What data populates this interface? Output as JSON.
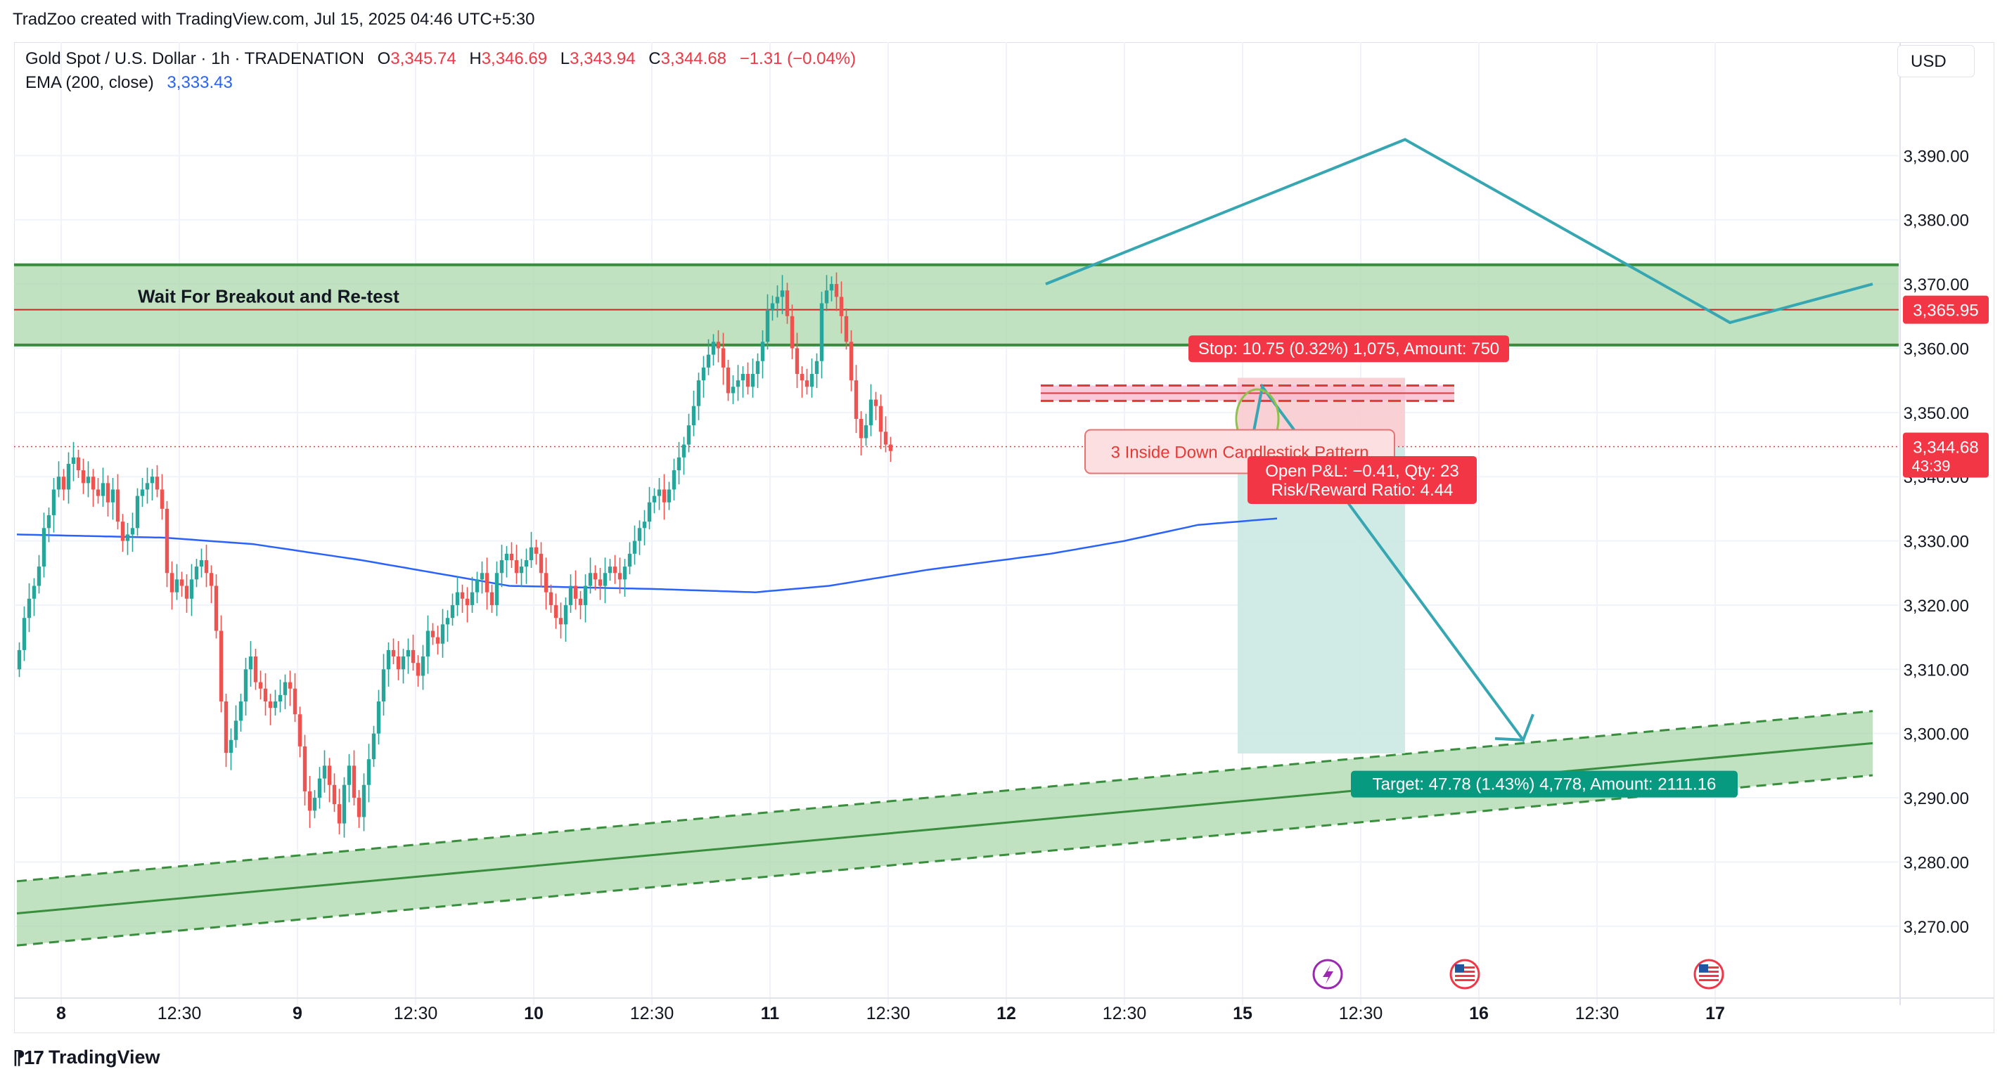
{
  "header": {
    "attribution": "TradZoo created with TradingView.com, Jul 15, 2025 04:46 UTC+5:30"
  },
  "legend": {
    "symbol": "Gold Spot / U.S. Dollar · 1h · TRADENATION",
    "open_label": "O",
    "open": "3,345.74",
    "high_label": "H",
    "high": "3,346.69",
    "low_label": "L",
    "low": "3,343.94",
    "close_label": "C",
    "close": "3,344.68",
    "change": "−1.31 (−0.04%)",
    "ema_label": "EMA (200, close)",
    "ema_value": "3,333.43"
  },
  "currency_button": "USD",
  "footer": {
    "brand": "TradingView"
  },
  "colors": {
    "up": "#26a69a",
    "down": "#ef5350",
    "ema": "#2962ff",
    "zone": "#a5d6a7",
    "zone_border": "#388e3c",
    "drawing": "#36a7b2",
    "stop_zone": "#f8c8cc",
    "target_zone": "#c8e8e2",
    "stop_label": "#f23645",
    "target_label": "#089981",
    "price_label": "#f23645"
  },
  "chart_data": {
    "type": "candlestick",
    "symbol": "Gold Spot / U.S. Dollar",
    "timeframe": "1h",
    "ylim": [
      3261,
      3400
    ],
    "y_ticks": [
      "3,270.00",
      "3,280.00",
      "3,290.00",
      "3,300.00",
      "3,310.00",
      "3,320.00",
      "3,330.00",
      "3,340.00",
      "3,350.00",
      "3,360.00",
      "3,370.00",
      "3,380.00",
      "3,390.00"
    ],
    "y_tick_values": [
      3270,
      3280,
      3290,
      3300,
      3310,
      3320,
      3330,
      3340,
      3350,
      3360,
      3370,
      3380,
      3390
    ],
    "x_ticks": [
      {
        "bar": 9,
        "label": "8",
        "bold": true
      },
      {
        "bar": 33,
        "label": "12:30",
        "bold": false
      },
      {
        "bar": 57,
        "label": "9",
        "bold": true
      },
      {
        "bar": 81,
        "label": "12:30",
        "bold": false
      },
      {
        "bar": 105,
        "label": "10",
        "bold": true
      },
      {
        "bar": 129,
        "label": "12:30",
        "bold": false
      },
      {
        "bar": 153,
        "label": "11",
        "bold": true
      },
      {
        "bar": 177,
        "label": "12:30",
        "bold": false
      },
      {
        "bar": 201,
        "label": "12",
        "bold": true
      },
      {
        "bar": 225,
        "label": "12:30",
        "bold": false
      },
      {
        "bar": 249,
        "label": "15",
        "bold": true
      },
      {
        "bar": 273,
        "label": "12:30",
        "bold": false
      },
      {
        "bar": 297,
        "label": "16",
        "bold": true
      },
      {
        "bar": 321,
        "label": "12:30",
        "bold": false
      },
      {
        "bar": 345,
        "label": "17",
        "bold": true
      }
    ],
    "close_series": [
      3313,
      3318,
      3321,
      3323,
      3326,
      3332,
      3334,
      3338,
      3340,
      3338,
      3342,
      3343,
      3341,
      3339,
      3340,
      3338,
      3337,
      3339,
      3336,
      3338,
      3333,
      3330,
      3331,
      3332,
      3337,
      3338,
      3339,
      3340,
      3338,
      3335,
      3325,
      3322,
      3324,
      3323,
      3321,
      3324,
      3326,
      3327,
      3325,
      3323,
      3316,
      3305,
      3297,
      3299,
      3302,
      3305,
      3310,
      3312,
      3308,
      3307,
      3305,
      3304,
      3305,
      3306,
      3308,
      3307,
      3303,
      3298,
      3291,
      3288,
      3290,
      3293,
      3295,
      3292,
      3289,
      3286,
      3292,
      3295,
      3290,
      3287,
      3292,
      3296,
      3300,
      3305,
      3310,
      3313,
      3312,
      3310,
      3312,
      3313,
      3311,
      3309,
      3312,
      3316,
      3315,
      3314,
      3317,
      3318,
      3320,
      3322,
      3321,
      3320,
      3322,
      3324,
      3325,
      3322,
      3320,
      3325,
      3327,
      3328,
      3327,
      3325,
      3326,
      3327,
      3329,
      3328,
      3325,
      3322,
      3320,
      3318,
      3317,
      3320,
      3323,
      3321,
      3320,
      3323,
      3325,
      3324,
      3323,
      3325,
      3326,
      3325,
      3324,
      3326,
      3328,
      3330,
      3332,
      3333,
      3336,
      3337,
      3338,
      3336,
      3338,
      3341,
      3343,
      3345,
      3348,
      3351,
      3355,
      3357,
      3359,
      3361,
      3360,
      3357,
      3353,
      3354,
      3355,
      3356,
      3354,
      3356,
      3358,
      3361,
      3366,
      3367,
      3368,
      3369,
      3365,
      3360,
      3356,
      3355,
      3354,
      3356,
      3358,
      3367,
      3369,
      3370,
      3368,
      3365,
      3361,
      3355,
      3349,
      3346,
      3348,
      3352,
      3351,
      3347,
      3345,
      3344
    ],
    "ema": {
      "name": "EMA (200, close)",
      "value": 3333.43,
      "points": [
        [
          0,
          3331
        ],
        [
          30,
          3330.5
        ],
        [
          48,
          3329.5
        ],
        [
          70,
          3327
        ],
        [
          100,
          3323
        ],
        [
          130,
          3322.5
        ],
        [
          150,
          3322
        ],
        [
          165,
          3323
        ],
        [
          185,
          3325.5
        ],
        [
          210,
          3328
        ],
        [
          225,
          3330
        ],
        [
          240,
          3332.5
        ],
        [
          256,
          3333.5
        ]
      ]
    },
    "annotations": {
      "resistance_zone": {
        "low": 3360.5,
        "high": 3373,
        "mid_line": 3366,
        "label": "Wait For Breakout and Re-test",
        "price_label": "3,365.95"
      },
      "current_price": {
        "value": 3344.68,
        "label": "3,344.68",
        "countdown": "43:39"
      },
      "pattern_label": "3 Inside Down Candlestick Pattern",
      "short_position": {
        "entry": 3344.68,
        "stop": 3355.4,
        "target": 3296.9,
        "stop_label": "Stop: 10.75 (0.32%) 1,075, Amount: 750",
        "pnl_label": "Open P&L: −0.41, Qty: 23",
        "rr_label": "Risk/Reward Ratio: 4.44",
        "target_label": "Target: 47.78 (1.43%) 4,778, Amount: 2111.16"
      },
      "rising_channel": {
        "start_bar": 0,
        "end_bar": 377,
        "center_start": 3272,
        "center_end": 3298.5,
        "half_width": 5
      },
      "projection_path": [
        [
          209,
          3370
        ],
        [
          282,
          3392.5
        ],
        [
          348,
          3364
        ],
        [
          377,
          3370
        ]
      ],
      "forecast_path": [
        [
          250,
          3342
        ],
        [
          253,
          3354
        ],
        [
          306,
          3299
        ],
        [
          308,
          3303
        ]
      ]
    }
  }
}
